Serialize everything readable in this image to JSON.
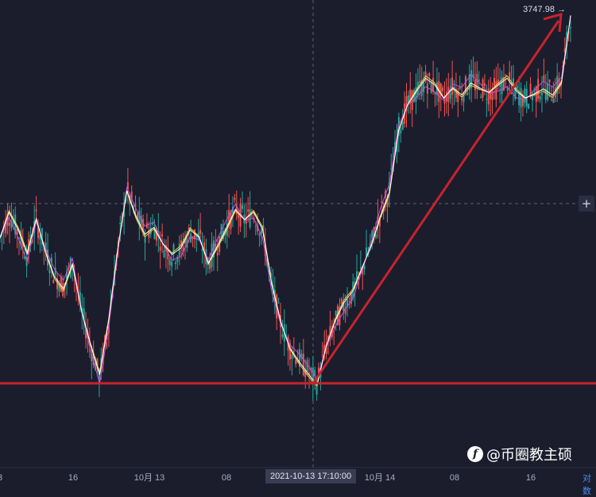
{
  "chart_data": {
    "type": "line",
    "price_label": "3747.98",
    "price_arrow": "→",
    "x_ticks": [
      "3",
      "16",
      "10月 13",
      "08",
      "10月 14",
      "08",
      "16"
    ],
    "crosshair_time": "2021-10-13 17:10:00",
    "support_level": 3140,
    "series": [
      {
        "values": [
          3380,
          3420,
          3390,
          3350,
          3410,
          3360,
          3320,
          3300,
          3340,
          3260,
          3200,
          3150,
          3240,
          3360,
          3460,
          3420,
          3390,
          3400,
          3370,
          3350,
          3360,
          3390,
          3380,
          3340,
          3370,
          3400,
          3430,
          3410,
          3420,
          3390,
          3300,
          3240,
          3200,
          3180,
          3160,
          3140,
          3200,
          3240,
          3270,
          3290,
          3330,
          3370,
          3420,
          3460,
          3560,
          3600,
          3620,
          3640,
          3630,
          3610,
          3630,
          3620,
          3640,
          3630,
          3620,
          3630,
          3640,
          3620,
          3610,
          3620,
          3630,
          3620,
          3640,
          3747
        ]
      }
    ],
    "colors": {
      "background": "#1b1d2d",
      "up": "#26a69a",
      "down": "#ef5350",
      "ma1": "#f5d142",
      "ma2": "#ce4fd6",
      "ma3": "#ffffff",
      "annotation": "#c8232c"
    }
  },
  "watermark": {
    "text": "@币圈教主硕",
    "logo": "f"
  },
  "corner": {
    "label": "对数"
  },
  "plus_label": "+"
}
